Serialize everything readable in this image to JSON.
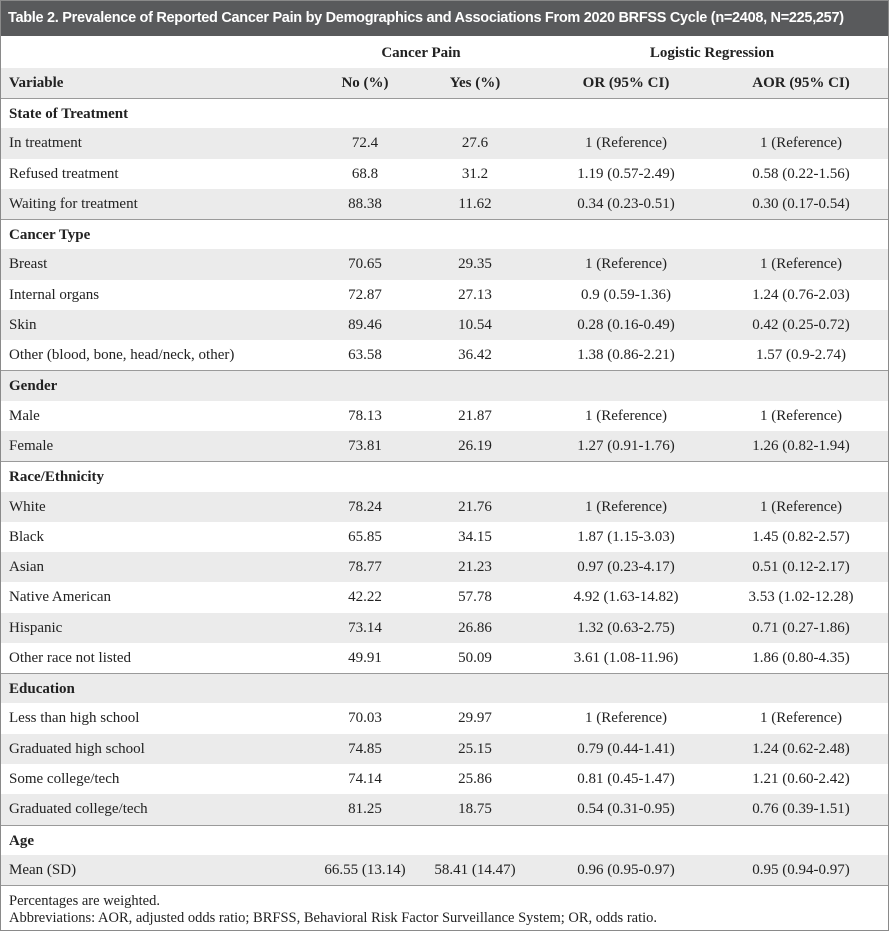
{
  "title": "Table 2. Prevalence of Reported Cancer Pain by Demographics and Associations From 2020 BRFSS Cycle (n=2408, N=225,257)",
  "header": {
    "groups": [
      "Cancer Pain",
      "Logistic Regression"
    ],
    "columns": [
      "Variable",
      "No (%)",
      "Yes (%)",
      "OR (95% CI)",
      "AOR (95% CI)"
    ]
  },
  "sections": [
    {
      "title": "State of Treatment",
      "rows": [
        [
          "In treatment",
          "72.4",
          "27.6",
          "1 (Reference)",
          "1 (Reference)"
        ],
        [
          "Refused treatment",
          "68.8",
          "31.2",
          "1.19 (0.57-2.49)",
          "0.58 (0.22-1.56)"
        ],
        [
          "Waiting for treatment",
          "88.38",
          "11.62",
          "0.34 (0.23-0.51)",
          "0.30 (0.17-0.54)"
        ]
      ]
    },
    {
      "title": "Cancer Type",
      "rows": [
        [
          "Breast",
          "70.65",
          "29.35",
          "1 (Reference)",
          "1 (Reference)"
        ],
        [
          "Internal organs",
          "72.87",
          "27.13",
          "0.9 (0.59-1.36)",
          "1.24 (0.76-2.03)"
        ],
        [
          "Skin",
          "89.46",
          "10.54",
          "0.28 (0.16-0.49)",
          "0.42 (0.25-0.72)"
        ],
        [
          "Other (blood, bone, head/neck, other)",
          "63.58",
          "36.42",
          "1.38 (0.86-2.21)",
          "1.57 (0.9-2.74)"
        ]
      ]
    },
    {
      "title": "Gender",
      "rows": [
        [
          "Male",
          "78.13",
          "21.87",
          "1 (Reference)",
          "1 (Reference)"
        ],
        [
          "Female",
          "73.81",
          "26.19",
          "1.27 (0.91-1.76)",
          "1.26 (0.82-1.94)"
        ]
      ]
    },
    {
      "title": "Race/Ethnicity",
      "rows": [
        [
          "White",
          "78.24",
          "21.76",
          "1 (Reference)",
          "1 (Reference)"
        ],
        [
          "Black",
          "65.85",
          "34.15",
          "1.87 (1.15-3.03)",
          "1.45 (0.82-2.57)"
        ],
        [
          "Asian",
          "78.77",
          "21.23",
          "0.97 (0.23-4.17)",
          "0.51 (0.12-2.17)"
        ],
        [
          "Native American",
          "42.22",
          "57.78",
          "4.92 (1.63-14.82)",
          "3.53 (1.02-12.28)"
        ],
        [
          "Hispanic",
          "73.14",
          "26.86",
          "1.32 (0.63-2.75)",
          "0.71 (0.27-1.86)"
        ],
        [
          "Other race not listed",
          "49.91",
          "50.09",
          "3.61 (1.08-11.96)",
          "1.86 (0.80-4.35)"
        ]
      ]
    },
    {
      "title": "Education",
      "rows": [
        [
          "Less than high school",
          "70.03",
          "29.97",
          "1 (Reference)",
          "1 (Reference)"
        ],
        [
          "Graduated high school",
          "74.85",
          "25.15",
          "0.79 (0.44-1.41)",
          "1.24 (0.62-2.48)"
        ],
        [
          "Some college/tech",
          "74.14",
          "25.86",
          "0.81 (0.45-1.47)",
          "1.21 (0.60-2.42)"
        ],
        [
          "Graduated college/tech",
          "81.25",
          "18.75",
          "0.54 (0.31-0.95)",
          "0.76 (0.39-1.51)"
        ]
      ]
    },
    {
      "title": "Age",
      "rows": [
        [
          "Mean (SD)",
          "66.55 (13.14)",
          "58.41 (14.47)",
          "0.96 (0.95-0.97)",
          "0.95 (0.94-0.97)"
        ]
      ]
    }
  ],
  "footnotes": [
    "Percentages are weighted.",
    "Abbreviations: AOR, adjusted odds ratio; BRFSS, Behavioral Risk Factor Surveillance System; OR, odds ratio."
  ]
}
